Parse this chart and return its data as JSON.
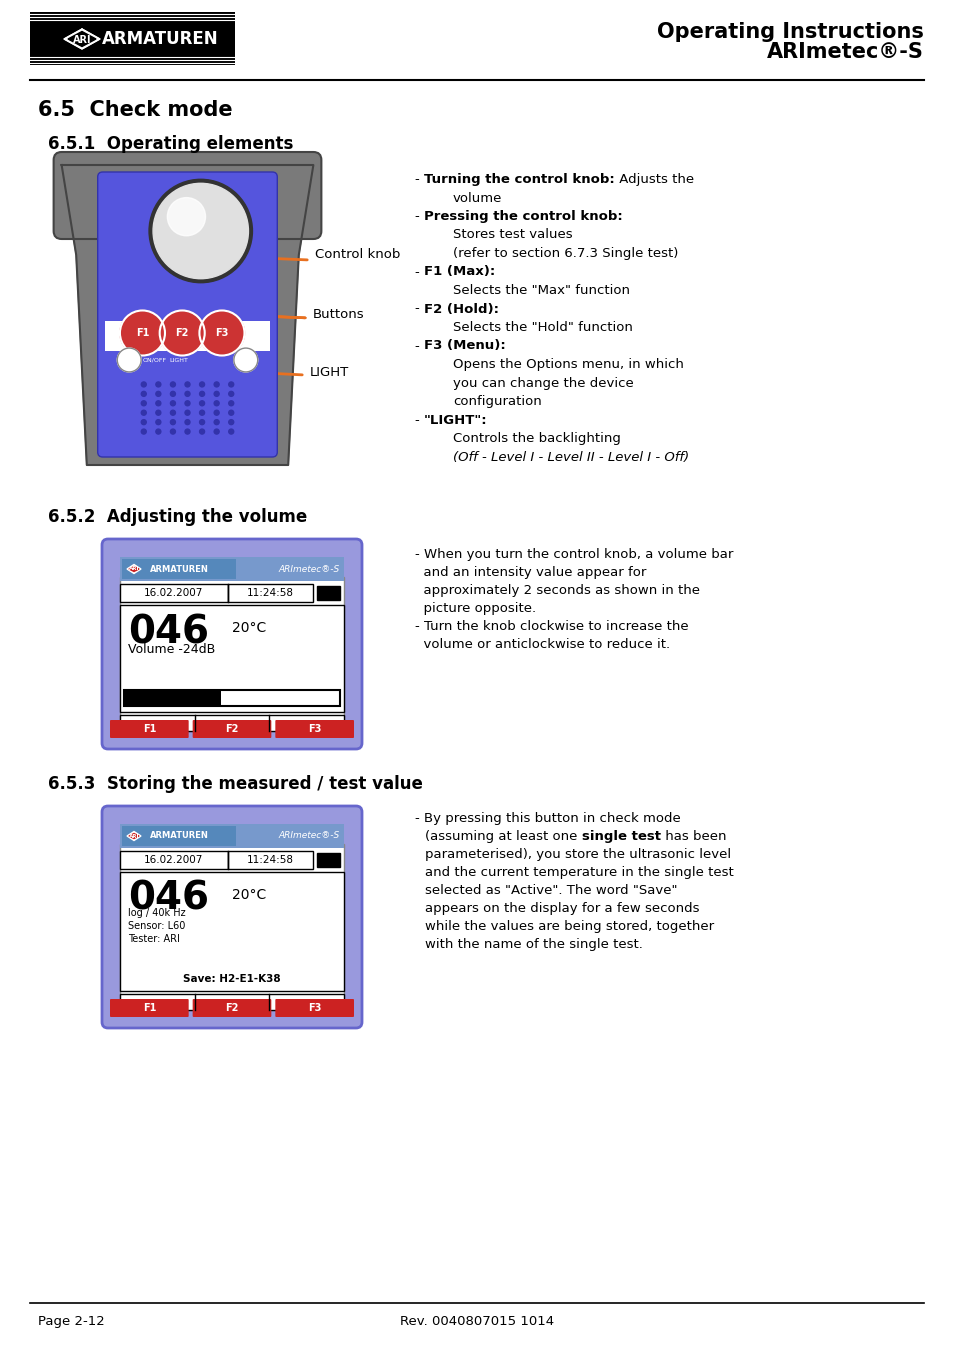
{
  "title_line1": "Operating Instructions",
  "title_line2": "ARImetec®-S",
  "section_title": "6.5  Check mode",
  "sub1_title": "6.5.1  Operating elements",
  "sub2_title": "6.5.2  Adjusting the volume",
  "sub3_title": "6.5.3  Storing the measured / test value",
  "footer_left": "Page 2-12",
  "footer_right": "Rev. 0040807015 1014",
  "bg_color": "#ffffff",
  "orange_arrow": "#e87020",
  "device_gray": "#7a7a7a",
  "device_blue": "#5555dd",
  "device_blue_dark": "#3333aa",
  "display_outer": "#8888ee",
  "display_white": "#ffffff",
  "display_header_blue": "#6699cc",
  "ari_red": "#cc2222",
  "bullet_lines": [
    {
      "indent": 0,
      "parts": [
        {
          "t": "- ",
          "b": false
        },
        {
          "t": "Turning the control knob:",
          "b": true
        },
        {
          "t": " Adjusts the",
          "b": false
        }
      ]
    },
    {
      "indent": 1,
      "parts": [
        {
          "t": "volume",
          "b": false
        }
      ]
    },
    {
      "indent": 0,
      "parts": [
        {
          "t": "- ",
          "b": false
        },
        {
          "t": "Pressing the control knob:",
          "b": true
        }
      ]
    },
    {
      "indent": 1,
      "parts": [
        {
          "t": "Stores test values",
          "b": false
        }
      ]
    },
    {
      "indent": 1,
      "parts": [
        {
          "t": "(refer to section 6.7.3 Single test)",
          "b": false
        }
      ]
    },
    {
      "indent": 0,
      "parts": [
        {
          "t": "- ",
          "b": false
        },
        {
          "t": "F1 (Max):",
          "b": true
        }
      ]
    },
    {
      "indent": 1,
      "parts": [
        {
          "t": "Selects the \"Max\" function",
          "b": false
        }
      ]
    },
    {
      "indent": 0,
      "parts": [
        {
          "t": "- ",
          "b": false
        },
        {
          "t": "F2 (Hold):",
          "b": true
        }
      ]
    },
    {
      "indent": 1,
      "parts": [
        {
          "t": "Selects the \"Hold\" function",
          "b": false
        }
      ]
    },
    {
      "indent": 0,
      "parts": [
        {
          "t": "- ",
          "b": false
        },
        {
          "t": "F3 (Menu):",
          "b": true
        }
      ]
    },
    {
      "indent": 1,
      "parts": [
        {
          "t": "Opens the Options menu, in which",
          "b": false
        }
      ]
    },
    {
      "indent": 1,
      "parts": [
        {
          "t": "you can change the device",
          "b": false
        }
      ]
    },
    {
      "indent": 1,
      "parts": [
        {
          "t": "configuration",
          "b": false
        }
      ]
    },
    {
      "indent": 0,
      "parts": [
        {
          "t": "- ",
          "b": false
        },
        {
          "t": "\"LIGHT\":",
          "b": true
        }
      ]
    },
    {
      "indent": 1,
      "parts": [
        {
          "t": "Controls the backlighting",
          "b": false
        }
      ]
    },
    {
      "indent": 1,
      "parts": [
        {
          "t": "(Off - Level I - Level II - Level I - Off)",
          "b": false,
          "i": true
        }
      ]
    }
  ],
  "vol_lines": [
    "- When you turn the control knob, a volume bar",
    "  and an intensity value appear for",
    "  approximately 2 seconds as shown in the",
    "  picture opposite.",
    "- Turn the knob clockwise to increase the",
    "  volume or anticlockwise to reduce it."
  ],
  "store_lines": [
    {
      "t": "- By pressing this button in check mode",
      "bold_word": ""
    },
    {
      "t": "(assuming at least one ",
      "bold_word": "single test",
      "after": " has been"
    },
    {
      "t": "parameterised), you store the ultrasonic level",
      "bold_word": ""
    },
    {
      "t": "and the current temperature in the single test",
      "bold_word": ""
    },
    {
      "t": "selected as \"Active\". The word \"Save\"",
      "bold_word": ""
    },
    {
      "t": "appears on the display for a few seconds",
      "bold_word": ""
    },
    {
      "t": "while the values are being stored, together",
      "bold_word": ""
    },
    {
      "t": "with the name of the single test.",
      "bold_word": ""
    }
  ]
}
